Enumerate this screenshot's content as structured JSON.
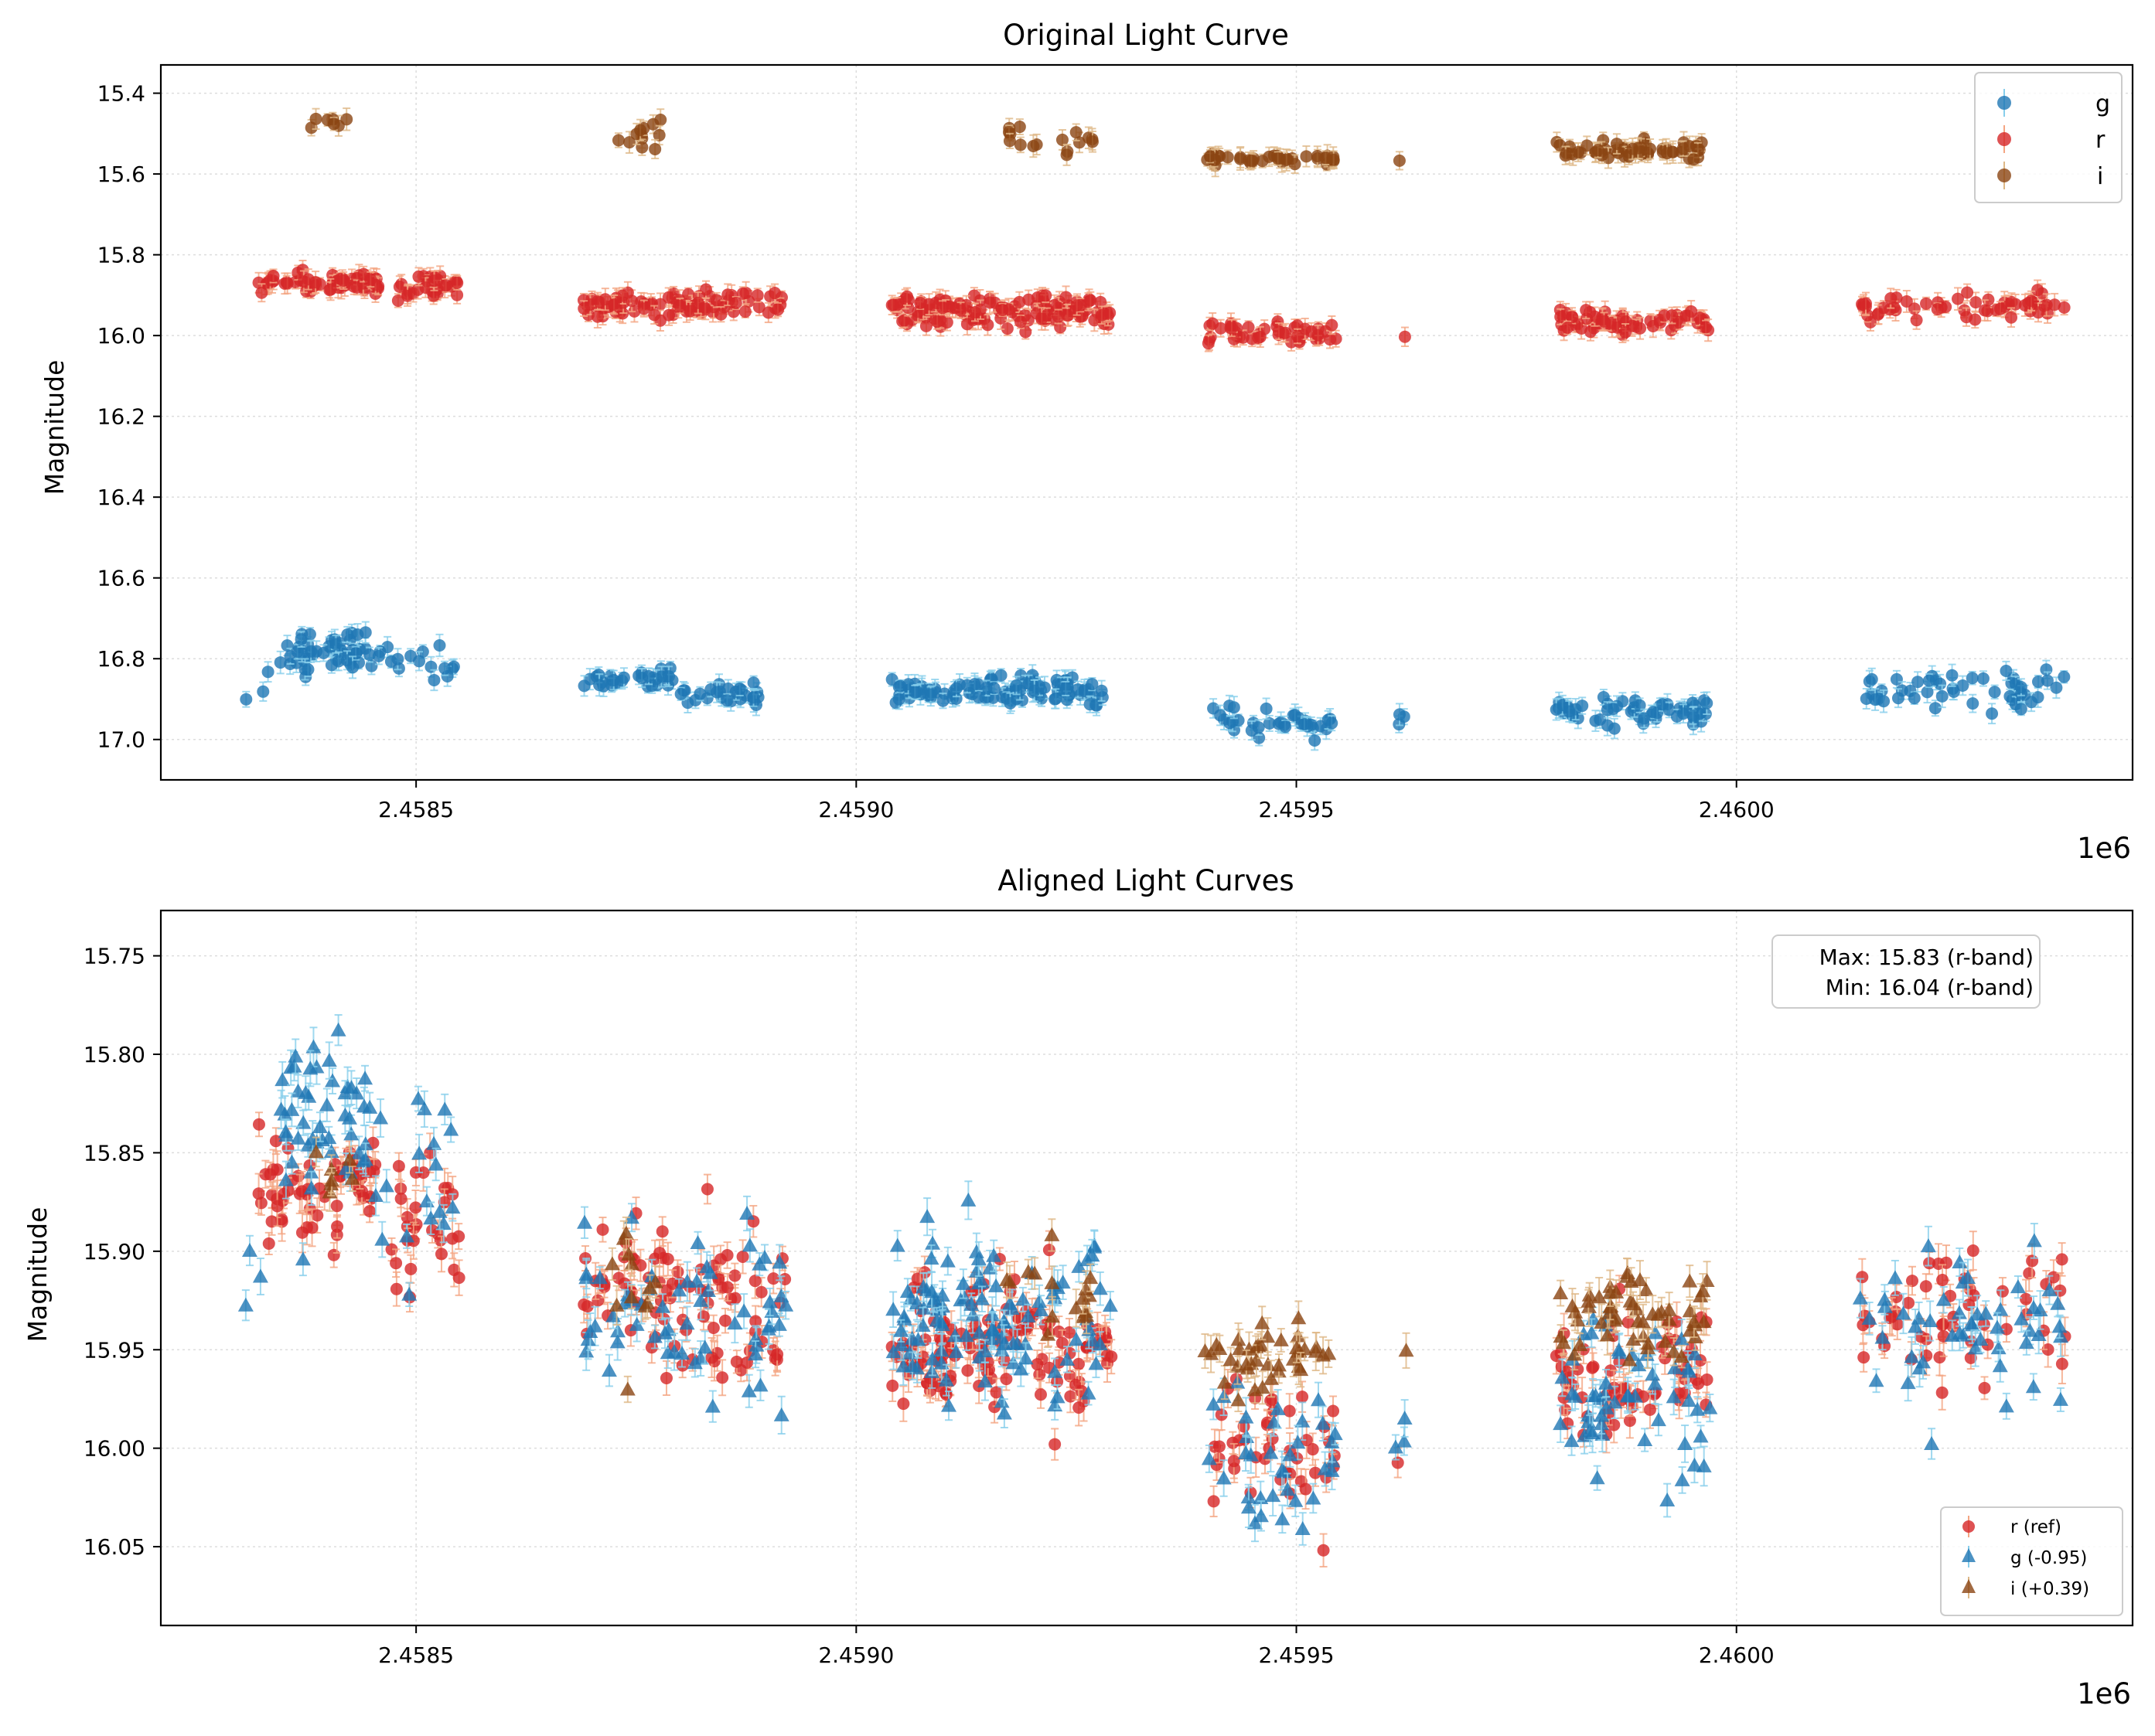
{
  "colors": {
    "g": "#1f77b4",
    "g_err": "#87ceeb",
    "r": "#d62728",
    "r_err": "#f4a582",
    "i": "#8b4513",
    "i_err": "#deb887",
    "grid": "#dddddd"
  },
  "chart_data": [
    {
      "type": "scatter",
      "title": "Original Light Curve",
      "xlabel": "",
      "ylabel": "Magnitude",
      "x_offset_label": "1e6",
      "xlim": [
        2458210,
        2460450
      ],
      "ylim": [
        17.1,
        15.33
      ],
      "y_inverted": true,
      "xticks": [
        2458500,
        2459000,
        2459500,
        2460000
      ],
      "xtick_labels": [
        "2.4585",
        "2.4590",
        "2.4595",
        "2.4600"
      ],
      "yticks": [
        15.4,
        15.6,
        15.8,
        16.0,
        16.2,
        16.4,
        16.6,
        16.8,
        17.0
      ],
      "ytick_labels": [
        "15.4",
        "15.6",
        "15.8",
        "16.0",
        "16.2",
        "16.4",
        "16.6",
        "16.8",
        "17.0"
      ],
      "grid": true,
      "legend_position": "top-right",
      "series": [
        {
          "name": "g",
          "marker": "circle",
          "color": "#1f77b4",
          "err_color": "#87ceeb",
          "segments": [
            {
              "x_start": 2458300,
              "x_end": 2458340,
              "y_center": 16.86,
              "y_spread": 0.07,
              "count": 3
            },
            {
              "x_start": 2458345,
              "x_end": 2458445,
              "y_center": 16.78,
              "y_spread": 0.09,
              "count": 45
            },
            {
              "x_start": 2458420,
              "x_end": 2458545,
              "y_center": 16.81,
              "y_spread": 0.08,
              "count": 22
            },
            {
              "x_start": 2458690,
              "x_end": 2458795,
              "y_center": 16.85,
              "y_spread": 0.05,
              "count": 30
            },
            {
              "x_start": 2458795,
              "x_end": 2458895,
              "y_center": 16.89,
              "y_spread": 0.05,
              "count": 28
            },
            {
              "x_start": 2459040,
              "x_end": 2459280,
              "y_center": 16.88,
              "y_spread": 0.06,
              "count": 110
            },
            {
              "x_start": 2459405,
              "x_end": 2459545,
              "y_center": 16.96,
              "y_spread": 0.06,
              "count": 35
            },
            {
              "x_start": 2459610,
              "x_end": 2459625,
              "y_center": 16.95,
              "y_spread": 0.04,
              "count": 3
            },
            {
              "x_start": 2459795,
              "x_end": 2459970,
              "y_center": 16.93,
              "y_spread": 0.07,
              "count": 55
            },
            {
              "x_start": 2460140,
              "x_end": 2460375,
              "y_center": 16.88,
              "y_spread": 0.08,
              "count": 50
            }
          ]
        },
        {
          "name": "r",
          "marker": "circle",
          "color": "#d62728",
          "err_color": "#f4a582",
          "segments": [
            {
              "x_start": 2458320,
              "x_end": 2458460,
              "y_center": 15.865,
              "y_spread": 0.05,
              "count": 60
            },
            {
              "x_start": 2458470,
              "x_end": 2458550,
              "y_center": 15.875,
              "y_spread": 0.06,
              "count": 30
            },
            {
              "x_start": 2458690,
              "x_end": 2458920,
              "y_center": 15.925,
              "y_spread": 0.06,
              "count": 90
            },
            {
              "x_start": 2459040,
              "x_end": 2459290,
              "y_center": 15.94,
              "y_spread": 0.06,
              "count": 130
            },
            {
              "x_start": 2459400,
              "x_end": 2459545,
              "y_center": 15.995,
              "y_spread": 0.05,
              "count": 45
            },
            {
              "x_start": 2459615,
              "x_end": 2459625,
              "y_center": 16.0,
              "y_spread": 0.02,
              "count": 1
            },
            {
              "x_start": 2459795,
              "x_end": 2459970,
              "y_center": 15.965,
              "y_spread": 0.05,
              "count": 65
            },
            {
              "x_start": 2460140,
              "x_end": 2460375,
              "y_center": 15.93,
              "y_spread": 0.06,
              "count": 55
            }
          ]
        },
        {
          "name": "i",
          "marker": "circle",
          "color": "#8b4513",
          "err_color": "#deb887",
          "segments": [
            {
              "x_start": 2458380,
              "x_end": 2458430,
              "y_center": 15.47,
              "y_spread": 0.03,
              "count": 7
            },
            {
              "x_start": 2458720,
              "x_end": 2458780,
              "y_center": 15.51,
              "y_spread": 0.08,
              "count": 12
            },
            {
              "x_start": 2459170,
              "x_end": 2459270,
              "y_center": 15.52,
              "y_spread": 0.06,
              "count": 16
            },
            {
              "x_start": 2459395,
              "x_end": 2459545,
              "y_center": 15.565,
              "y_spread": 0.03,
              "count": 40
            },
            {
              "x_start": 2459610,
              "x_end": 2459625,
              "y_center": 15.565,
              "y_spread": 0.01,
              "count": 1
            },
            {
              "x_start": 2459795,
              "x_end": 2459970,
              "y_center": 15.54,
              "y_spread": 0.04,
              "count": 55
            }
          ]
        }
      ]
    },
    {
      "type": "scatter",
      "title": "Aligned Light Curves",
      "xlabel": "",
      "ylabel": "Magnitude",
      "x_offset_label": "1e6",
      "xlim": [
        2458210,
        2460450
      ],
      "ylim": [
        16.09,
        15.727
      ],
      "y_inverted": true,
      "xticks": [
        2458500,
        2459000,
        2459500,
        2460000
      ],
      "xtick_labels": [
        "2.4585",
        "2.4590",
        "2.4595",
        "2.4600"
      ],
      "yticks": [
        15.75,
        15.8,
        15.85,
        15.9,
        15.95,
        16.0,
        16.05
      ],
      "ytick_labels": [
        "15.75",
        "15.80",
        "15.85",
        "15.90",
        "15.95",
        "16.00",
        "16.05"
      ],
      "grid": true,
      "legend_position": "bottom-right",
      "annotation": {
        "line1": "Max: 15.83 (r-band)",
        "line2": "Min: 16.04 (r-band)"
      },
      "series": [
        {
          "name": "r (ref)",
          "marker": "circle",
          "color": "#d62728",
          "err_color": "#f4a582",
          "segments": [
            {
              "x_start": 2458320,
              "x_end": 2458460,
              "y_center": 15.87,
              "y_spread": 0.05,
              "count": 60
            },
            {
              "x_start": 2458470,
              "x_end": 2458550,
              "y_center": 15.885,
              "y_spread": 0.06,
              "count": 30
            },
            {
              "x_start": 2458690,
              "x_end": 2458920,
              "y_center": 15.93,
              "y_spread": 0.07,
              "count": 90
            },
            {
              "x_start": 2459040,
              "x_end": 2459290,
              "y_center": 15.945,
              "y_spread": 0.06,
              "count": 130
            },
            {
              "x_start": 2459400,
              "x_end": 2459545,
              "y_center": 16.0,
              "y_spread": 0.06,
              "count": 45
            },
            {
              "x_start": 2459615,
              "x_end": 2459625,
              "y_center": 16.005,
              "y_spread": 0.01,
              "count": 1
            },
            {
              "x_start": 2459795,
              "x_end": 2459970,
              "y_center": 15.965,
              "y_spread": 0.05,
              "count": 65
            },
            {
              "x_start": 2460140,
              "x_end": 2460375,
              "y_center": 15.935,
              "y_spread": 0.06,
              "count": 55
            }
          ]
        },
        {
          "name": "g (-0.95)",
          "marker": "triangle",
          "color": "#1f77b4",
          "err_color": "#87ceeb",
          "segments": [
            {
              "x_start": 2458300,
              "x_end": 2458345,
              "y_center": 15.91,
              "y_spread": 0.06,
              "count": 3
            },
            {
              "x_start": 2458345,
              "x_end": 2458445,
              "y_center": 15.83,
              "y_spread": 0.09,
              "count": 45
            },
            {
              "x_start": 2458440,
              "x_end": 2458545,
              "y_center": 15.87,
              "y_spread": 0.08,
              "count": 22
            },
            {
              "x_start": 2458690,
              "x_end": 2458920,
              "y_center": 15.93,
              "y_spread": 0.08,
              "count": 60
            },
            {
              "x_start": 2459040,
              "x_end": 2459290,
              "y_center": 15.935,
              "y_spread": 0.08,
              "count": 110
            },
            {
              "x_start": 2459400,
              "x_end": 2459545,
              "y_center": 16.01,
              "y_spread": 0.07,
              "count": 35
            },
            {
              "x_start": 2459610,
              "x_end": 2459625,
              "y_center": 16.0,
              "y_spread": 0.03,
              "count": 3
            },
            {
              "x_start": 2459795,
              "x_end": 2459970,
              "y_center": 15.975,
              "y_spread": 0.07,
              "count": 55
            },
            {
              "x_start": 2460140,
              "x_end": 2460375,
              "y_center": 15.94,
              "y_spread": 0.08,
              "count": 50
            }
          ]
        },
        {
          "name": "i (+0.39)",
          "marker": "triangle",
          "color": "#8b4513",
          "err_color": "#deb887",
          "segments": [
            {
              "x_start": 2458380,
              "x_end": 2458430,
              "y_center": 15.86,
              "y_spread": 0.02,
              "count": 7
            },
            {
              "x_start": 2458720,
              "x_end": 2458780,
              "y_center": 15.92,
              "y_spread": 0.08,
              "count": 12
            },
            {
              "x_start": 2459170,
              "x_end": 2459270,
              "y_center": 15.925,
              "y_spread": 0.05,
              "count": 16
            },
            {
              "x_start": 2459395,
              "x_end": 2459545,
              "y_center": 15.955,
              "y_spread": 0.03,
              "count": 40
            },
            {
              "x_start": 2459610,
              "x_end": 2459625,
              "y_center": 15.955,
              "y_spread": 0.01,
              "count": 1
            },
            {
              "x_start": 2459795,
              "x_end": 2459970,
              "y_center": 15.93,
              "y_spread": 0.04,
              "count": 55
            }
          ]
        }
      ]
    }
  ]
}
